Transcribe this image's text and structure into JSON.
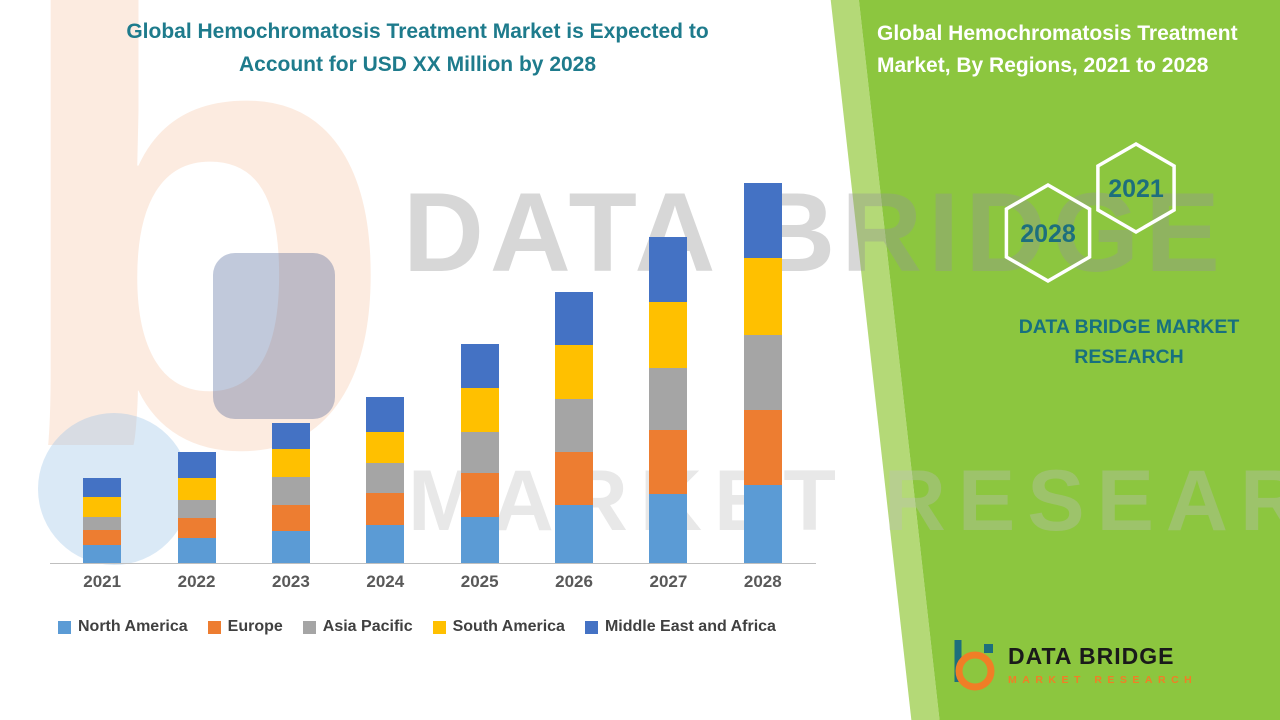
{
  "watermark": {
    "letter": "b",
    "big_text": "DATA BRIDGE",
    "outline_text": "MARKET RESEARCH"
  },
  "panel": {
    "heading": "Global Hemochromatosis Treatment Market, By Regions, 2021 to 2028",
    "hex_year_left": "2028",
    "hex_year_right": "2021",
    "brand_line": "DATA BRIDGE MARKET RESEARCH",
    "green": "#8cc63f",
    "teal": "#17707f"
  },
  "footer_logo": {
    "name": "DATA BRIDGE",
    "tagline": "MARKET RESEARCH"
  },
  "chart_data": {
    "type": "bar",
    "stacked": true,
    "title": "Global Hemochromatosis Treatment Market is Expected to Account for USD XX Million by 2028",
    "xlabel": "",
    "ylabel": "",
    "categories": [
      "2021",
      "2022",
      "2023",
      "2024",
      "2025",
      "2026",
      "2027",
      "2028"
    ],
    "series": [
      {
        "name": "North America",
        "color": "#5B9BD5",
        "values": [
          18,
          25,
          32,
          38,
          46,
          58,
          69,
          78
        ]
      },
      {
        "name": "Europe",
        "color": "#ED7D31",
        "values": [
          15,
          20,
          26,
          32,
          44,
          53,
          64,
          75
        ]
      },
      {
        "name": "Asia Pacific",
        "color": "#A5A5A5",
        "values": [
          13,
          18,
          28,
          30,
          41,
          53,
          62,
          75
        ]
      },
      {
        "name": "South America",
        "color": "#FFC000",
        "values": [
          20,
          22,
          28,
          31,
          44,
          54,
          66,
          77
        ]
      },
      {
        "name": "Middle East and Africa",
        "color": "#4472C4",
        "values": [
          19,
          26,
          26,
          35,
          44,
          53,
          65,
          75
        ]
      }
    ],
    "ylim": [
      0,
      380
    ],
    "grid": false,
    "legend_position": "bottom"
  }
}
